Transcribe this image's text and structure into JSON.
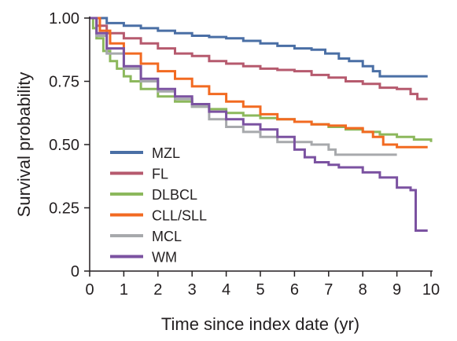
{
  "chart_data": {
    "type": "line",
    "step": true,
    "title": "",
    "xlabel": "Time since index date (yr)",
    "ylabel": "Survival probability",
    "xlim": [
      0,
      10
    ],
    "ylim": [
      0,
      1
    ],
    "xticks": [
      "0",
      "1",
      "2",
      "3",
      "4",
      "5",
      "6",
      "7",
      "8",
      "9",
      "10"
    ],
    "yticks": [
      "0",
      "0.25",
      "0.50",
      "0.75",
      "1.00"
    ],
    "grid": false,
    "legend_position": "bottom-left",
    "series": [
      {
        "name": "MZL",
        "color": "#4a6fa5",
        "x": [
          0,
          0.5,
          1,
          1.5,
          2,
          2.5,
          3,
          3.5,
          4,
          4.5,
          5,
          5.5,
          6,
          6.5,
          6.9,
          7.3,
          7.6,
          8,
          8.3,
          8.5,
          9,
          9.5,
          9.9
        ],
        "y": [
          1.0,
          0.98,
          0.97,
          0.96,
          0.95,
          0.94,
          0.93,
          0.925,
          0.92,
          0.91,
          0.9,
          0.89,
          0.88,
          0.875,
          0.86,
          0.84,
          0.83,
          0.81,
          0.79,
          0.77,
          0.77,
          0.77,
          0.77
        ]
      },
      {
        "name": "FL",
        "color": "#b65a6e",
        "x": [
          0,
          0.2,
          0.5,
          1,
          1.5,
          2,
          2.5,
          3,
          3.5,
          4,
          4.5,
          5,
          5.5,
          6,
          6.5,
          7,
          7.5,
          8,
          8.5,
          9,
          9.4,
          9.6,
          9.9
        ],
        "y": [
          1.0,
          0.97,
          0.94,
          0.92,
          0.9,
          0.88,
          0.86,
          0.85,
          0.83,
          0.82,
          0.81,
          0.8,
          0.795,
          0.79,
          0.775,
          0.765,
          0.75,
          0.74,
          0.725,
          0.72,
          0.7,
          0.68,
          0.68
        ]
      },
      {
        "name": "DLBCL",
        "color": "#8cb85c",
        "x": [
          0,
          0.1,
          0.2,
          0.4,
          0.6,
          0.8,
          1,
          1.2,
          1.5,
          2,
          2.5,
          3,
          3.5,
          4,
          4.5,
          5,
          5.5,
          6,
          6.5,
          7,
          7.5,
          8,
          8.5,
          9,
          9.5,
          10
        ],
        "y": [
          1.0,
          0.96,
          0.92,
          0.87,
          0.83,
          0.8,
          0.77,
          0.75,
          0.72,
          0.69,
          0.67,
          0.65,
          0.64,
          0.625,
          0.615,
          0.605,
          0.6,
          0.59,
          0.58,
          0.57,
          0.56,
          0.55,
          0.54,
          0.53,
          0.52,
          0.51
        ]
      },
      {
        "name": "CLL/SLL",
        "color": "#f26a21",
        "x": [
          0,
          0.3,
          0.6,
          1,
          1.5,
          2,
          2.5,
          3,
          3.5,
          4,
          4.5,
          5,
          5.5,
          6,
          6.5,
          7,
          7.5,
          8,
          8.3,
          8.6,
          9,
          9.5,
          9.9
        ],
        "y": [
          1.0,
          0.95,
          0.9,
          0.86,
          0.82,
          0.79,
          0.76,
          0.73,
          0.7,
          0.67,
          0.65,
          0.62,
          0.6,
          0.59,
          0.58,
          0.575,
          0.565,
          0.55,
          0.53,
          0.5,
          0.49,
          0.49,
          0.49
        ]
      },
      {
        "name": "MCL",
        "color": "#a7a9ac",
        "x": [
          0,
          0.2,
          0.5,
          1,
          1.5,
          2,
          2.5,
          3,
          3.5,
          4,
          4.5,
          5,
          5.5,
          6,
          6.5,
          7,
          7.2,
          7.5,
          8,
          8.5,
          9
        ],
        "y": [
          1.0,
          0.93,
          0.86,
          0.8,
          0.75,
          0.71,
          0.68,
          0.65,
          0.6,
          0.57,
          0.55,
          0.53,
          0.51,
          0.51,
          0.5,
          0.48,
          0.46,
          0.46,
          0.46,
          0.46,
          0.46
        ]
      },
      {
        "name": "WM",
        "color": "#7b52a1",
        "x": [
          0,
          0.2,
          0.5,
          1,
          1.5,
          2,
          2.5,
          3,
          3.5,
          4,
          4.5,
          5,
          5.5,
          6,
          6.3,
          6.6,
          7,
          7.3,
          7.6,
          8,
          8.5,
          9,
          9.4,
          9.55,
          9.9
        ],
        "y": [
          1.0,
          0.94,
          0.88,
          0.81,
          0.76,
          0.72,
          0.69,
          0.66,
          0.63,
          0.6,
          0.58,
          0.56,
          0.53,
          0.48,
          0.45,
          0.43,
          0.42,
          0.41,
          0.41,
          0.39,
          0.37,
          0.33,
          0.32,
          0.16,
          0.16
        ]
      }
    ]
  }
}
